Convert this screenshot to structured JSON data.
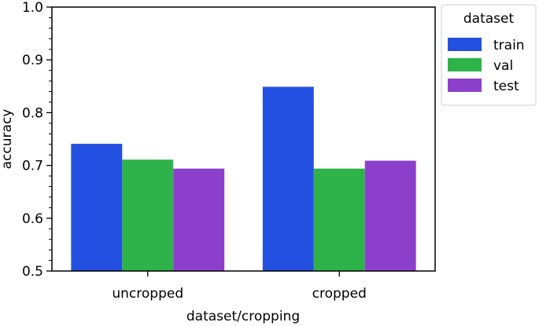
{
  "chart_data": {
    "type": "bar",
    "categories": [
      "uncropped",
      "cropped"
    ],
    "series": [
      {
        "name": "train",
        "values": [
          0.741,
          0.849
        ],
        "color": "#2350e0"
      },
      {
        "name": "val",
        "values": [
          0.711,
          0.694
        ],
        "color": "#2db34a"
      },
      {
        "name": "test",
        "values": [
          0.694,
          0.709
        ],
        "color": "#8b3fcb"
      }
    ],
    "xlabel": "dataset/cropping",
    "ylabel": "accuracy",
    "ylim": [
      0.5,
      1.0
    ],
    "yticks": [
      "0.5",
      "0.6",
      "0.7",
      "0.8",
      "0.9",
      "1.0"
    ],
    "yminor_step": 0.02,
    "grid": false,
    "legend": {
      "title": "dataset",
      "placement": "outside-top-right"
    }
  }
}
